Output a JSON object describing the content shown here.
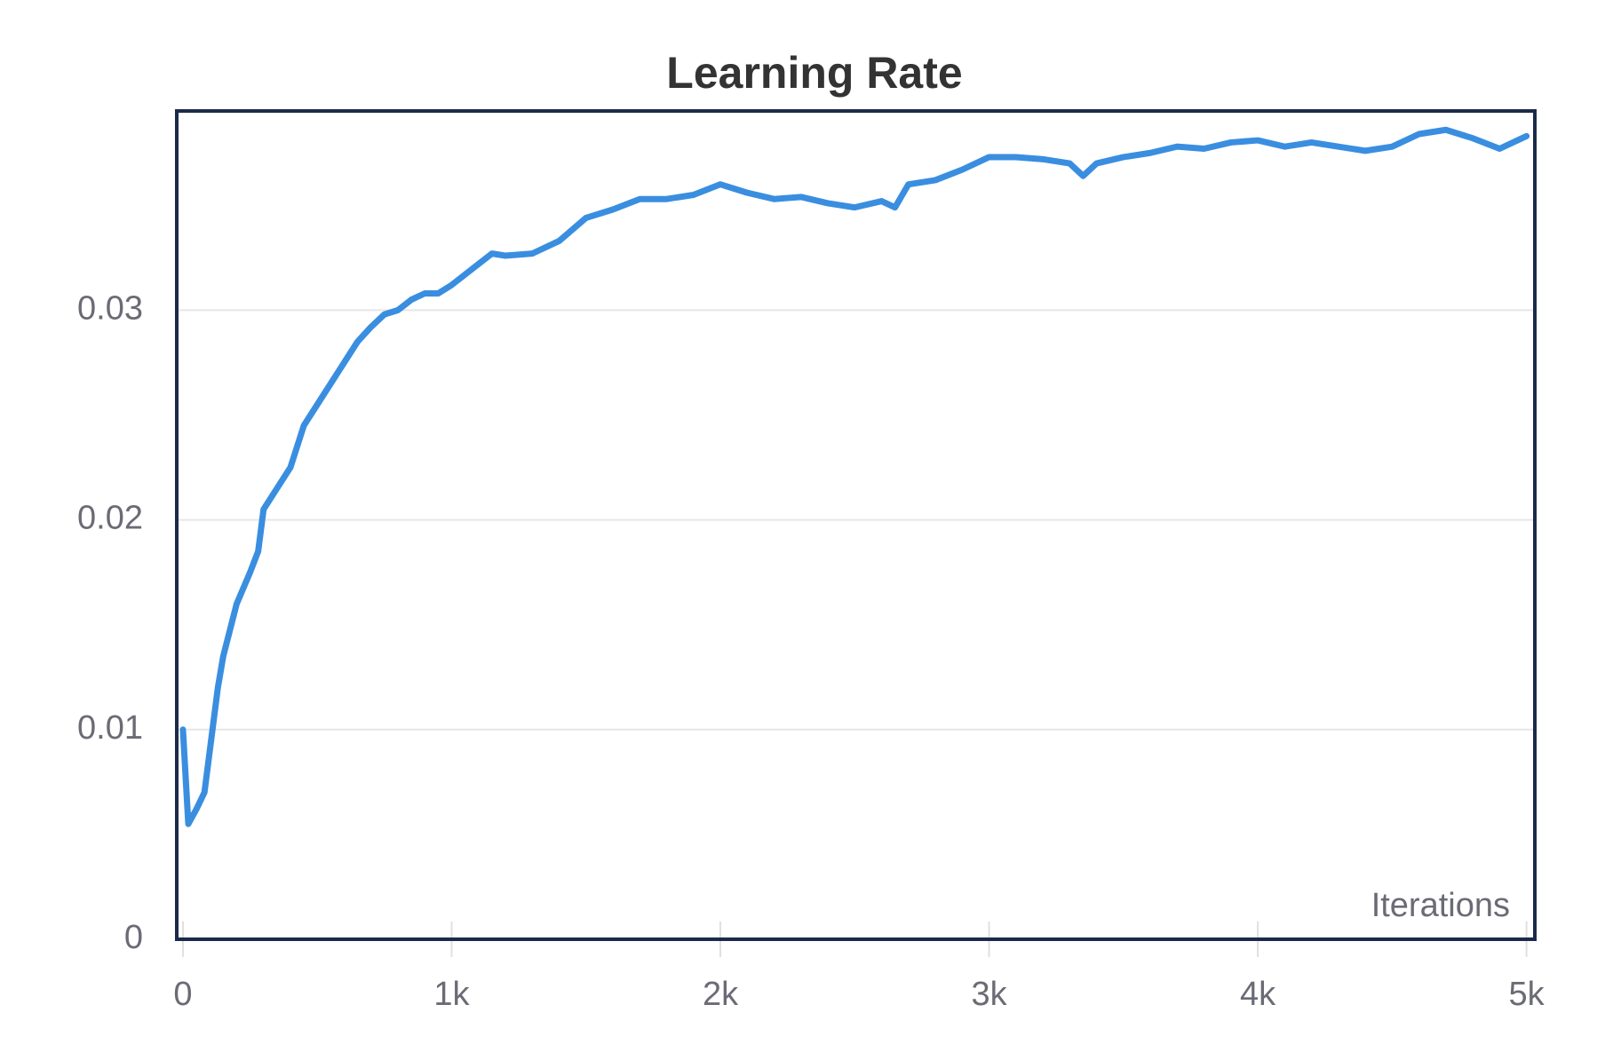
{
  "chart_data": {
    "type": "line",
    "title": "Learning Rate",
    "x_label": "Iterations",
    "x": [
      0,
      20,
      50,
      80,
      100,
      130,
      150,
      200,
      250,
      280,
      300,
      350,
      400,
      450,
      500,
      550,
      600,
      650,
      700,
      750,
      800,
      850,
      900,
      950,
      1000,
      1100,
      1150,
      1200,
      1300,
      1400,
      1500,
      1600,
      1700,
      1800,
      1900,
      2000,
      2100,
      2200,
      2300,
      2400,
      2500,
      2600,
      2650,
      2700,
      2800,
      2900,
      3000,
      3100,
      3200,
      3300,
      3350,
      3400,
      3500,
      3600,
      3700,
      3800,
      3900,
      4000,
      4100,
      4200,
      4300,
      4400,
      4500,
      4600,
      4700,
      4800,
      4900,
      5000
    ],
    "series": [
      {
        "name": "Learning Rate",
        "color": "#3a8ee0",
        "values": [
          0.01,
          0.0055,
          0.0062,
          0.007,
          0.009,
          0.012,
          0.0135,
          0.016,
          0.0175,
          0.0185,
          0.0205,
          0.0215,
          0.0225,
          0.0245,
          0.0255,
          0.0265,
          0.0275,
          0.0285,
          0.0292,
          0.0298,
          0.03,
          0.0305,
          0.0308,
          0.0308,
          0.0312,
          0.0322,
          0.0327,
          0.0326,
          0.0327,
          0.0333,
          0.0344,
          0.0348,
          0.0353,
          0.0353,
          0.0355,
          0.036,
          0.0356,
          0.0353,
          0.0354,
          0.0351,
          0.0349,
          0.0352,
          0.0349,
          0.036,
          0.0362,
          0.0367,
          0.0373,
          0.0373,
          0.0372,
          0.037,
          0.0364,
          0.037,
          0.0373,
          0.0375,
          0.0378,
          0.0377,
          0.038,
          0.0381,
          0.0378,
          0.038,
          0.0378,
          0.0376,
          0.0378,
          0.0384,
          0.0386,
          0.0382,
          0.0377,
          0.0383
        ]
      }
    ],
    "xlim": [
      -23,
      5031
    ],
    "xticks": [
      0,
      {
        "value": 1000,
        "label": "1k"
      },
      {
        "value": 2000,
        "label": "2k"
      },
      {
        "value": 3000,
        "label": "3k"
      },
      {
        "value": 4000,
        "label": "4k"
      },
      {
        "value": 5000,
        "label": "5k"
      }
    ],
    "ylim": [
      0,
      0.0395
    ],
    "yticks": [
      0,
      0.01,
      0.02,
      0.03
    ],
    "grid": true
  }
}
